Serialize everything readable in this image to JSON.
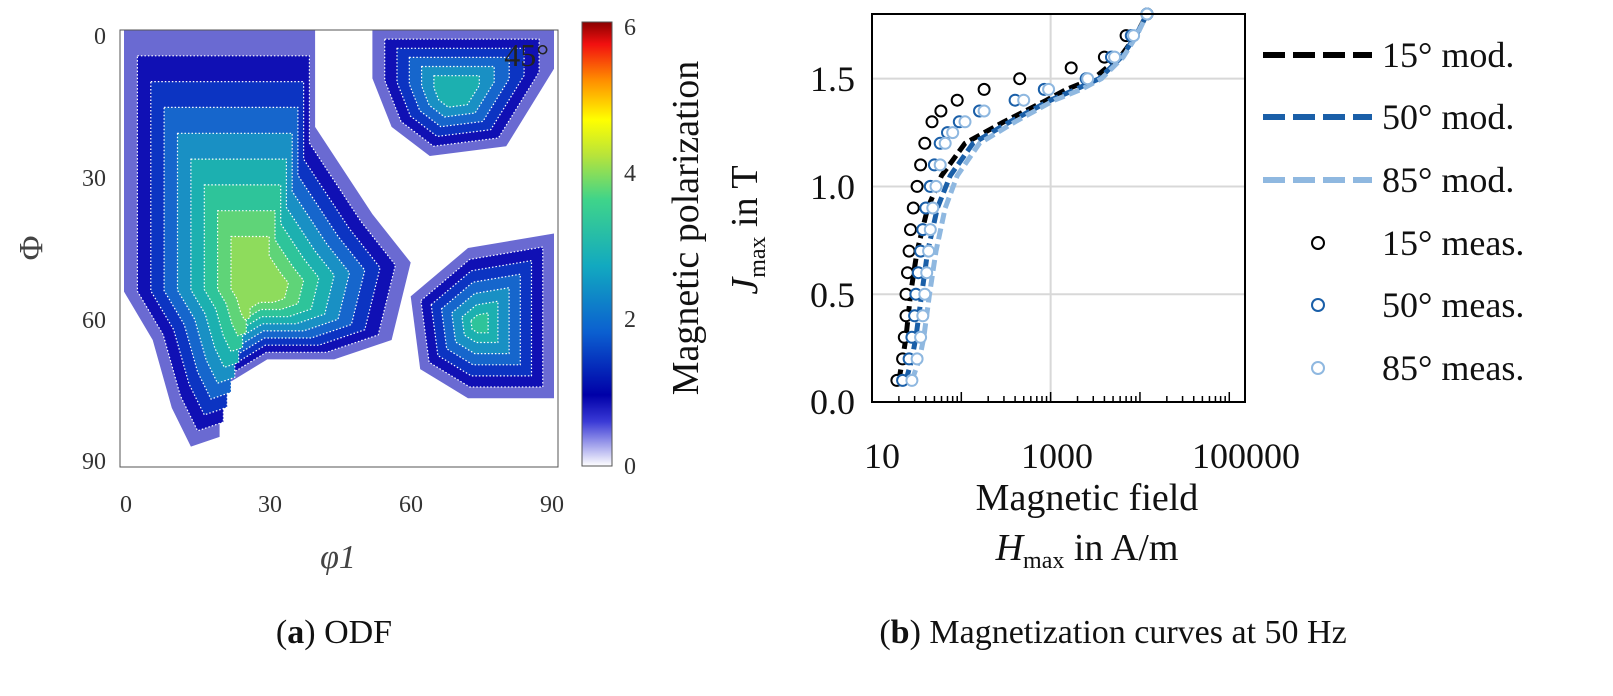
{
  "chart_data": [
    {
      "type": "heatmap",
      "caption_label": "a",
      "caption_text": "ODF",
      "xlabel": "φ1",
      "ylabel": "Φ",
      "xticks": [
        "0",
        "30",
        "60",
        "90"
      ],
      "yticks": [
        "0",
        "30",
        "60",
        "90"
      ],
      "xlim": [
        0,
        90
      ],
      "ylim": [
        0,
        90
      ],
      "annotation": "45°",
      "colorbar": {
        "label": "Magnetic polarization",
        "range": [
          0,
          6
        ],
        "ticks": [
          "0",
          "2",
          "4",
          "6"
        ]
      },
      "peaks": [
        {
          "phi1": 22,
          "Phi": 32,
          "value": 3.4
        },
        {
          "phi1": 66,
          "Phi": 0,
          "value": 3.2
        },
        {
          "phi1": 88,
          "Phi": 58,
          "value": 3.0
        }
      ]
    },
    {
      "type": "line",
      "caption_label": "b",
      "caption_text": "Magnetization curves at 50 Hz",
      "xlabel_line1": "Magnetic field",
      "xlabel_sym": "H",
      "xlabel_sub": "max",
      "xlabel_unit": " in A/m",
      "ylabel_line1": "Magnetic polarization",
      "ylabel_sym": "J",
      "ylabel_sub": "max",
      "ylabel_unit": " in T",
      "x_scale": "log",
      "xlim": [
        10,
        150000
      ],
      "ylim": [
        0.0,
        1.8
      ],
      "xticks": [
        "10",
        "1000",
        "100000"
      ],
      "yticks": [
        "0.0",
        "0.5",
        "1.0",
        "1.5"
      ],
      "grid": true,
      "legend_position": "right",
      "series": [
        {
          "name": "15° mod.",
          "style": "dashed",
          "color": "#000000",
          "x": [
            20,
            22,
            24,
            27,
            32,
            42,
            60,
            110,
            300,
            900,
            1500,
            3000,
            6000,
            9000,
            12000
          ],
          "y": [
            0.1,
            0.2,
            0.3,
            0.5,
            0.7,
            0.9,
            1.05,
            1.2,
            1.3,
            1.4,
            1.45,
            1.5,
            1.6,
            1.7,
            1.8
          ]
        },
        {
          "name": "50° mod.",
          "style": "dashed",
          "color": "#1a5fa8",
          "x": [
            24,
            28,
            31,
            36,
            42,
            54,
            75,
            135,
            350,
            1000,
            1900,
            3500,
            6200,
            9000,
            12000
          ],
          "y": [
            0.1,
            0.2,
            0.3,
            0.5,
            0.7,
            0.9,
            1.05,
            1.2,
            1.3,
            1.4,
            1.45,
            1.5,
            1.6,
            1.7,
            1.8
          ]
        },
        {
          "name": "85° mod.",
          "style": "dashed",
          "color": "#8fb8e0",
          "x": [
            28,
            34,
            38,
            44,
            52,
            66,
            90,
            160,
            400,
            1100,
            2200,
            3700,
            6500,
            9200,
            12000
          ],
          "y": [
            0.1,
            0.2,
            0.3,
            0.5,
            0.7,
            0.9,
            1.05,
            1.2,
            1.3,
            1.4,
            1.45,
            1.5,
            1.6,
            1.7,
            1.8
          ]
        },
        {
          "name": "15° meas.",
          "style": "marker",
          "color": "#000000",
          "x": [
            19,
            22,
            23,
            24,
            24,
            25,
            26,
            27,
            29,
            32,
            35,
            39,
            47,
            59,
            90,
            180,
            450,
            1700,
            4000,
            7000,
            12000
          ],
          "y": [
            0.1,
            0.2,
            0.3,
            0.4,
            0.5,
            0.6,
            0.7,
            0.8,
            0.9,
            1.0,
            1.1,
            1.2,
            1.3,
            1.35,
            1.4,
            1.45,
            1.5,
            1.55,
            1.6,
            1.7,
            1.8
          ]
        },
        {
          "name": "50° meas.",
          "style": "marker",
          "color": "#1a5fa8",
          "x": [
            22,
            26,
            28,
            30,
            31,
            33,
            35,
            37,
            40,
            45,
            50,
            58,
            70,
            95,
            160,
            400,
            850,
            2500,
            4800,
            8000,
            12000
          ],
          "y": [
            0.1,
            0.2,
            0.3,
            0.4,
            0.5,
            0.6,
            0.7,
            0.8,
            0.9,
            1.0,
            1.1,
            1.2,
            1.25,
            1.3,
            1.35,
            1.4,
            1.45,
            1.5,
            1.6,
            1.7,
            1.8
          ]
        },
        {
          "name": "85° meas.",
          "style": "marker",
          "color": "#8fb8e0",
          "x": [
            28,
            32,
            35,
            37,
            39,
            41,
            43,
            45,
            48,
            52,
            58,
            66,
            80,
            110,
            180,
            500,
            950,
            2600,
            5200,
            8500,
            12000
          ],
          "y": [
            0.1,
            0.2,
            0.3,
            0.4,
            0.5,
            0.6,
            0.7,
            0.8,
            0.9,
            1.0,
            1.1,
            1.2,
            1.25,
            1.3,
            1.35,
            1.4,
            1.45,
            1.5,
            1.6,
            1.7,
            1.8
          ]
        }
      ]
    }
  ]
}
